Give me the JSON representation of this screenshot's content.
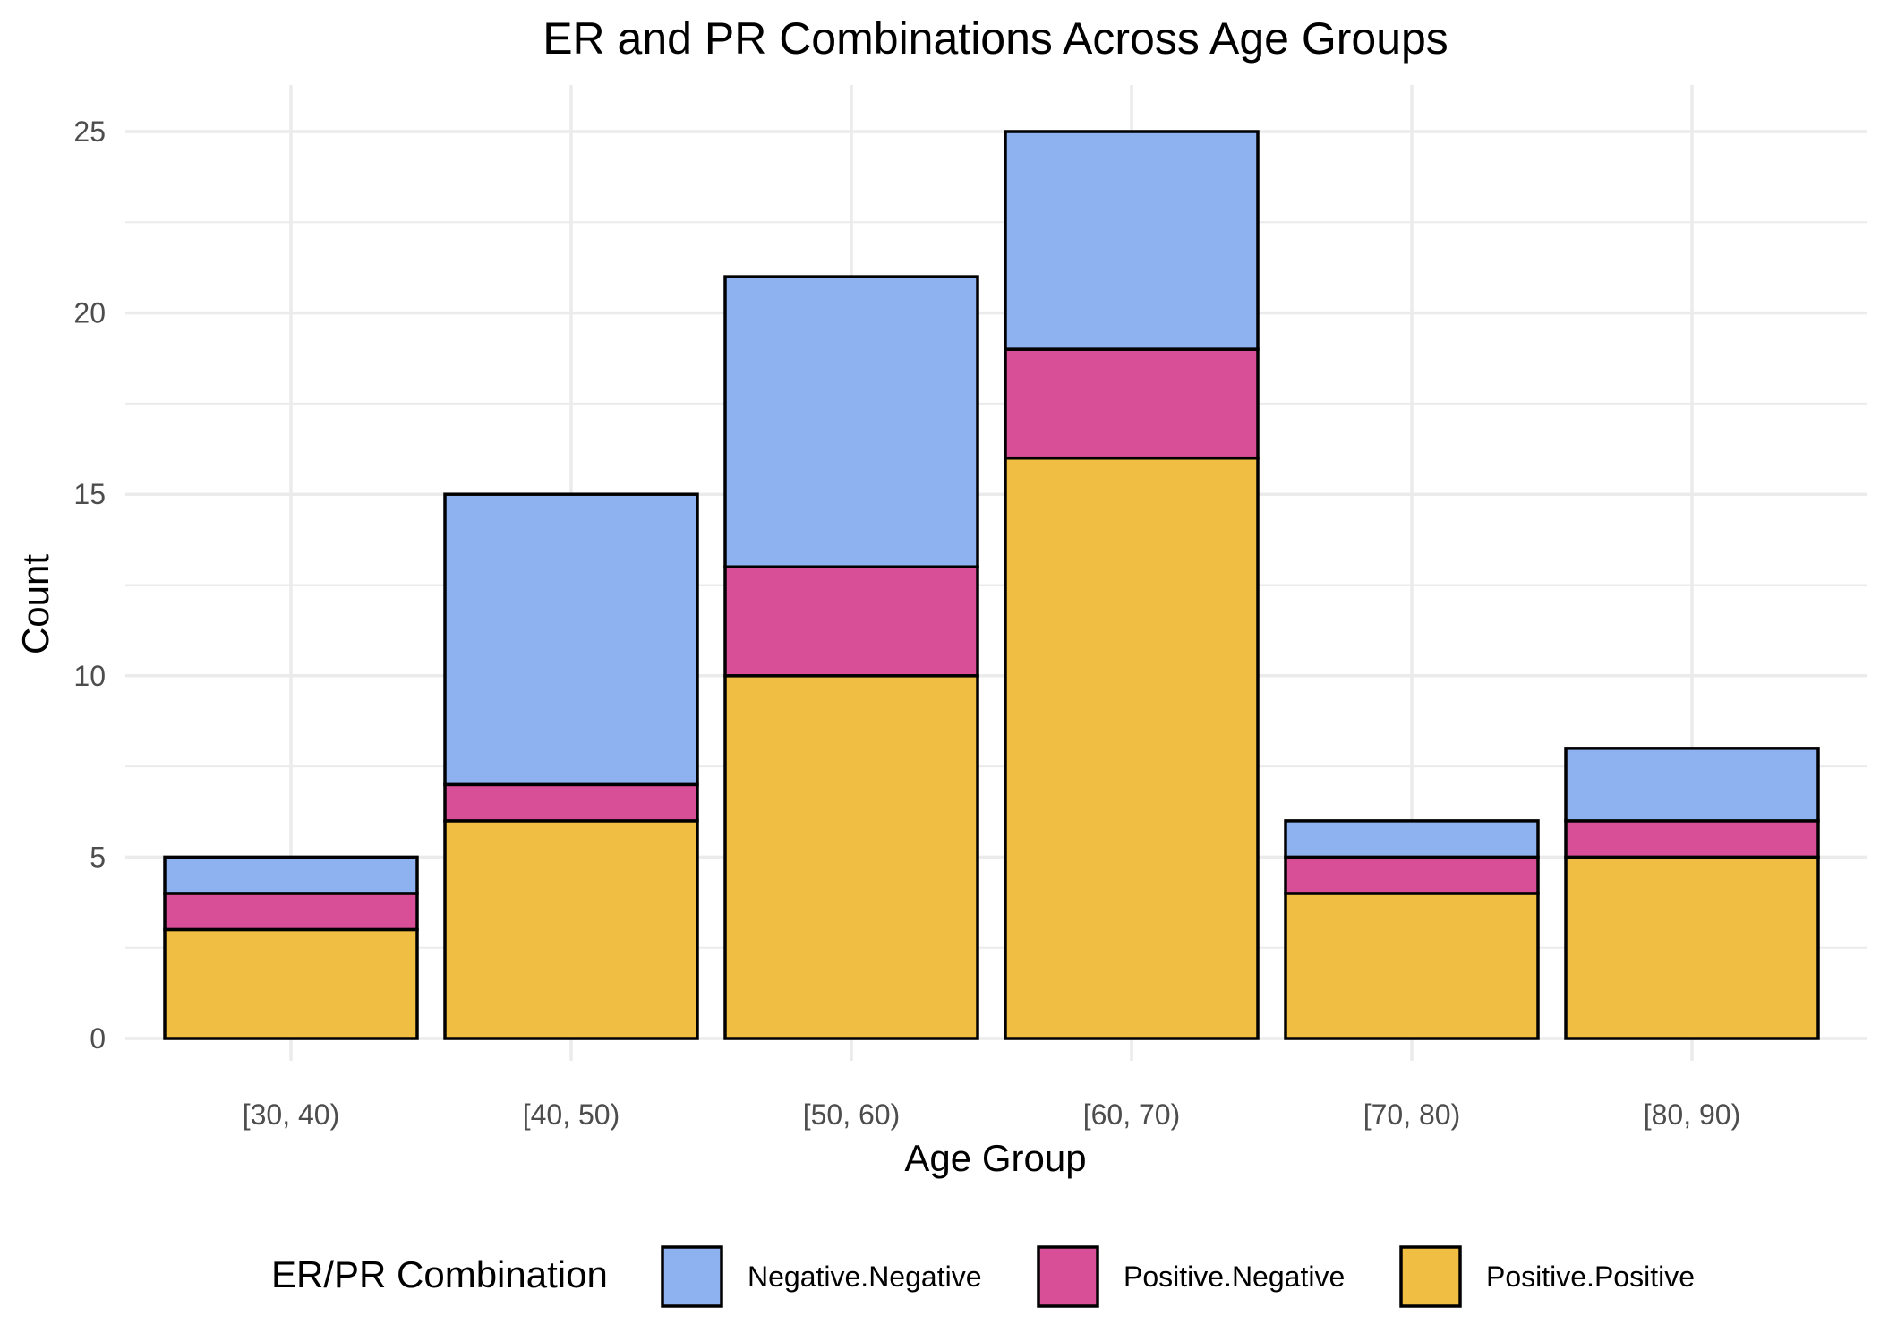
{
  "chart_data": {
    "type": "bar",
    "stacked": true,
    "title": "ER and PR Combinations Across Age Groups",
    "xlabel": "Age Group",
    "ylabel": "Count",
    "categories": [
      "[30, 40)",
      "[40, 50)",
      "[50, 60)",
      "[60, 70)",
      "[70, 80)",
      "[80, 90)"
    ],
    "series": [
      {
        "name": "Positive.Positive",
        "color": "#F0BE42",
        "values": [
          3,
          6,
          10,
          16,
          4,
          5
        ]
      },
      {
        "name": "Positive.Negative",
        "color": "#D94F97",
        "values": [
          1,
          1,
          3,
          3,
          1,
          1
        ]
      },
      {
        "name": "Negative.Negative",
        "color": "#8DB2EF",
        "values": [
          1,
          8,
          8,
          6,
          1,
          2
        ]
      }
    ],
    "ylim": [
      0,
      25
    ],
    "yticks": [
      0,
      5,
      10,
      15,
      20,
      25
    ],
    "grid": true,
    "legend_title": "ER/PR Combination",
    "legend_order": [
      "Negative.Negative",
      "Positive.Negative",
      "Positive.Positive"
    ],
    "legend_position": "bottom"
  }
}
